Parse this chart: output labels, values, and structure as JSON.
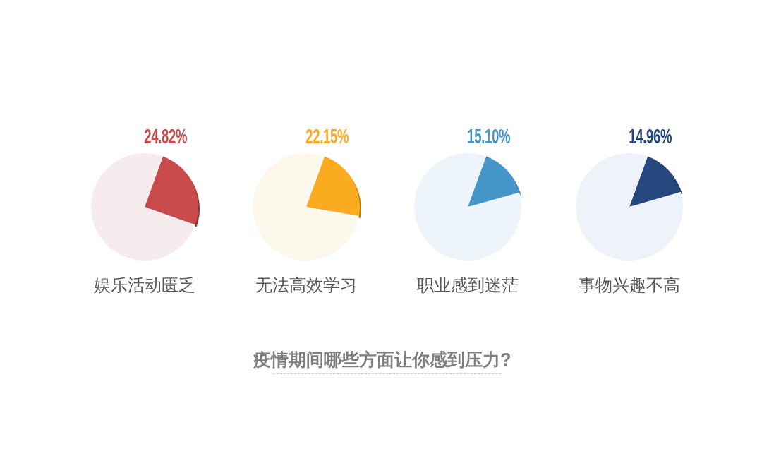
{
  "chart_data": [
    {
      "type": "pie",
      "title": "娱乐活动匮乏",
      "categories": [
        null,
        null
      ],
      "values": [
        24.82,
        75.18
      ],
      "colors": [
        "#c84a4b",
        "#f6ecee"
      ],
      "value_labels": [
        "24.82%",
        null
      ]
    },
    {
      "type": "pie",
      "title": "无法高效学习",
      "categories": [
        null,
        null
      ],
      "values": [
        22.15,
        77.85
      ],
      "colors": [
        "#fbab1f",
        "#fdf8ec"
      ],
      "value_labels": [
        "22.15%",
        null
      ]
    },
    {
      "type": "pie",
      "title": "职业感到迷茫",
      "categories": [
        null,
        null
      ],
      "values": [
        15.1,
        84.9
      ],
      "colors": [
        "#4695c8",
        "#eef5fa"
      ],
      "value_labels": [
        "15.10%",
        null
      ]
    },
    {
      "type": "pie",
      "title": "事物兴趣不高",
      "categories": [
        null,
        null
      ],
      "values": [
        14.96,
        85.04
      ],
      "colors": [
        "#26477e",
        "#eef2f9"
      ],
      "value_labels": [
        "14.96%",
        null
      ]
    },
    {
      "type": "other",
      "title": "疫情期间哪些方面让你感到压力?"
    }
  ]
}
